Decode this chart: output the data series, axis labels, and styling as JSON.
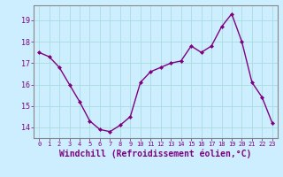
{
  "x": [
    0,
    1,
    2,
    3,
    4,
    5,
    6,
    7,
    8,
    9,
    10,
    11,
    12,
    13,
    14,
    15,
    16,
    17,
    18,
    19,
    20,
    21,
    22,
    23
  ],
  "y": [
    17.5,
    17.3,
    16.8,
    16.0,
    15.2,
    14.3,
    13.9,
    13.8,
    14.1,
    14.5,
    16.1,
    16.6,
    16.8,
    17.0,
    17.1,
    17.8,
    17.5,
    17.8,
    18.7,
    19.3,
    18.0,
    16.1,
    15.4,
    14.2
  ],
  "line_color": "#800080",
  "marker": "D",
  "marker_size": 2.0,
  "xlabel": "Windchill (Refroidissement éolien,°C)",
  "xlabel_fontsize": 7,
  "yticks": [
    14,
    15,
    16,
    17,
    18,
    19
  ],
  "xtick_labels": [
    "0",
    "1",
    "2",
    "3",
    "4",
    "5",
    "6",
    "7",
    "8",
    "9",
    "10",
    "11",
    "12",
    "13",
    "14",
    "15",
    "16",
    "17",
    "18",
    "19",
    "20",
    "21",
    "22",
    "23"
  ],
  "ylim": [
    13.5,
    19.7
  ],
  "xlim": [
    -0.5,
    23.5
  ],
  "bg_color": "#cceeff",
  "grid_color": "#aadddd",
  "tick_color": "#800080",
  "label_color": "#800080",
  "line_width": 1.0,
  "spine_color": "#888888"
}
